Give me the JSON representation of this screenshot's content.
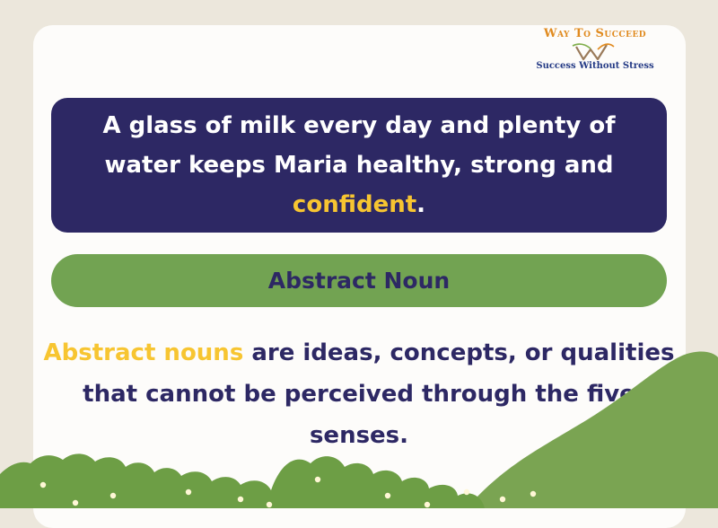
{
  "logo": {
    "brand": "Way To Succeed",
    "tagline": "Success Without Stress",
    "icon": "wings-w-logo-icon"
  },
  "sentence": {
    "text_before": "A glass of milk every day and plenty of water keeps Maria healthy, strong and ",
    "highlight": "confident",
    "text_after": "."
  },
  "noun_type": "Abstract Noun",
  "definition": {
    "highlight": "Abstract nouns",
    "text": " are ideas, concepts, or qualities that cannot be perceived through the five senses."
  },
  "colors": {
    "background": "#ece7dc",
    "navy": "#2d2864",
    "yellow": "#f7c531",
    "green": "#72a352",
    "orange": "#e08a1e"
  }
}
